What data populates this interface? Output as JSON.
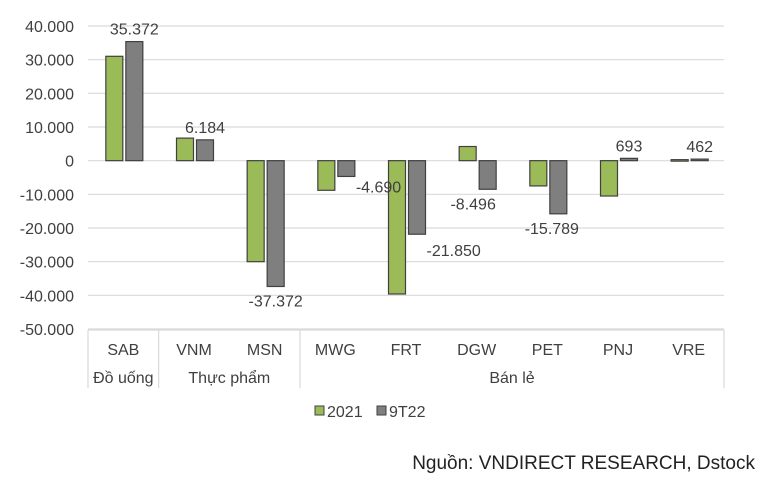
{
  "chart_data": {
    "type": "bar",
    "categories": [
      "SAB",
      "VNM",
      "MSN",
      "MWG",
      "FRT",
      "DGW",
      "PET",
      "PNJ",
      "VRE"
    ],
    "groups": [
      {
        "label": "Đồ uống",
        "span": 1
      },
      {
        "label": "Thực phẩm",
        "span": 2
      },
      {
        "label": "Bán lẻ",
        "span": 6
      }
    ],
    "series": [
      {
        "name": "2021",
        "color": "#9BBB59",
        "values": [
          31000,
          6700,
          -30000,
          -8800,
          -39600,
          4200,
          -7500,
          -10500,
          300
        ],
        "labels": [
          null,
          null,
          null,
          null,
          null,
          null,
          null,
          null,
          null
        ]
      },
      {
        "name": "9T22",
        "color": "#7F7F7F",
        "values": [
          35372,
          6184,
          -37372,
          -4690,
          -21850,
          -8496,
          -15789,
          693,
          462
        ],
        "labels": [
          "35.372",
          "6.184",
          "-37.372",
          "-4.690",
          "-21.850",
          "-8.496",
          "-15.789",
          "693",
          "462"
        ]
      }
    ],
    "ylim": [
      -50000,
      40000
    ],
    "yticks": [
      40000,
      30000,
      20000,
      10000,
      0,
      -10000,
      -20000,
      -30000,
      -40000,
      -50000
    ],
    "ytick_labels": [
      "40.000",
      "30.000",
      "20.000",
      "10.000",
      "0",
      "-10.000",
      "-20.000",
      "-30.000",
      "-40.000",
      "-50.000"
    ],
    "grid": true,
    "legend": "bottom",
    "title": "",
    "xlabel": "",
    "ylabel": ""
  },
  "source": "Nguồn: VNDIRECT RESEARCH, Dstock"
}
